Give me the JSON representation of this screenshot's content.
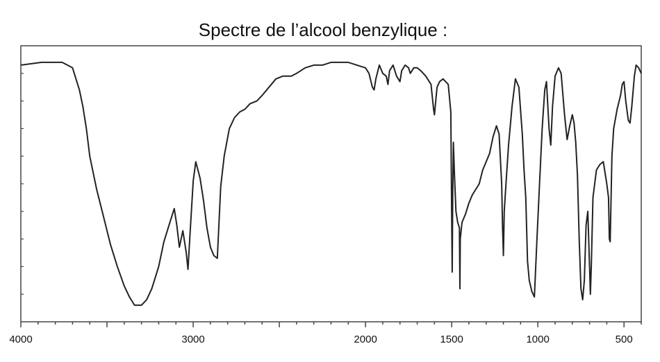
{
  "chart_data": {
    "type": "line",
    "title": "Spectre de l’alcool benzylique :",
    "xlabel": "",
    "ylabel": "",
    "xlim": [
      4000,
      400
    ],
    "ylim": [
      0,
      100
    ],
    "x_reversed": true,
    "grid": false,
    "legend": "none",
    "x_tick_labels": [
      {
        "value": 4000,
        "label": "4000"
      },
      {
        "value": 3000,
        "label": "3000"
      },
      {
        "value": 2000,
        "label": "2000"
      },
      {
        "value": 1500,
        "label": "1500"
      },
      {
        "value": 1000,
        "label": "1000"
      },
      {
        "value": 500,
        "label": "500"
      }
    ],
    "series": [
      {
        "color": "#222222",
        "points": [
          [
            4000,
            93
          ],
          [
            3880,
            94
          ],
          [
            3760,
            94
          ],
          [
            3700,
            92
          ],
          [
            3660,
            84
          ],
          [
            3640,
            78
          ],
          [
            3620,
            70
          ],
          [
            3600,
            60
          ],
          [
            3560,
            48
          ],
          [
            3520,
            38
          ],
          [
            3480,
            28
          ],
          [
            3440,
            20
          ],
          [
            3400,
            13
          ],
          [
            3370,
            9
          ],
          [
            3340,
            6
          ],
          [
            3300,
            6
          ],
          [
            3270,
            8
          ],
          [
            3240,
            12
          ],
          [
            3200,
            20
          ],
          [
            3170,
            29
          ],
          [
            3130,
            37
          ],
          [
            3110,
            41
          ],
          [
            3095,
            35
          ],
          [
            3080,
            27
          ],
          [
            3060,
            33
          ],
          [
            3040,
            25
          ],
          [
            3030,
            19
          ],
          [
            3020,
            30
          ],
          [
            3000,
            51
          ],
          [
            2985,
            58
          ],
          [
            2960,
            52
          ],
          [
            2940,
            44
          ],
          [
            2920,
            34
          ],
          [
            2900,
            27
          ],
          [
            2880,
            24
          ],
          [
            2860,
            23
          ],
          [
            2840,
            49
          ],
          [
            2820,
            60
          ],
          [
            2790,
            70
          ],
          [
            2760,
            74
          ],
          [
            2730,
            76
          ],
          [
            2700,
            77
          ],
          [
            2670,
            79
          ],
          [
            2630,
            80
          ],
          [
            2600,
            82
          ],
          [
            2560,
            85
          ],
          [
            2520,
            88
          ],
          [
            2480,
            89
          ],
          [
            2430,
            89
          ],
          [
            2400,
            90
          ],
          [
            2350,
            92
          ],
          [
            2300,
            93
          ],
          [
            2250,
            93
          ],
          [
            2200,
            94
          ],
          [
            2150,
            94
          ],
          [
            2100,
            94
          ],
          [
            2050,
            93
          ],
          [
            2000,
            92
          ],
          [
            1980,
            90
          ],
          [
            1960,
            85
          ],
          [
            1950,
            84
          ],
          [
            1940,
            88
          ],
          [
            1920,
            93
          ],
          [
            1900,
            90
          ],
          [
            1880,
            89
          ],
          [
            1870,
            86
          ],
          [
            1860,
            91
          ],
          [
            1840,
            93
          ],
          [
            1820,
            89
          ],
          [
            1800,
            87
          ],
          [
            1790,
            91
          ],
          [
            1770,
            93
          ],
          [
            1750,
            92
          ],
          [
            1740,
            90
          ],
          [
            1720,
            92
          ],
          [
            1700,
            92
          ],
          [
            1680,
            91
          ],
          [
            1650,
            89
          ],
          [
            1620,
            86
          ],
          [
            1605,
            77
          ],
          [
            1600,
            75
          ],
          [
            1585,
            85
          ],
          [
            1570,
            87
          ],
          [
            1550,
            88
          ],
          [
            1520,
            86
          ],
          [
            1505,
            76
          ],
          [
            1500,
            40
          ],
          [
            1497,
            18
          ],
          [
            1494,
            45
          ],
          [
            1490,
            65
          ],
          [
            1485,
            55
          ],
          [
            1475,
            40
          ],
          [
            1465,
            36
          ],
          [
            1455,
            34
          ],
          [
            1452,
            12
          ],
          [
            1450,
            30
          ],
          [
            1440,
            36
          ],
          [
            1420,
            39
          ],
          [
            1400,
            43
          ],
          [
            1380,
            46
          ],
          [
            1360,
            48
          ],
          [
            1340,
            50
          ],
          [
            1320,
            55
          ],
          [
            1300,
            58
          ],
          [
            1280,
            61
          ],
          [
            1260,
            67
          ],
          [
            1240,
            71
          ],
          [
            1225,
            68
          ],
          [
            1210,
            50
          ],
          [
            1205,
            35
          ],
          [
            1200,
            24
          ],
          [
            1195,
            40
          ],
          [
            1185,
            50
          ],
          [
            1170,
            64
          ],
          [
            1150,
            78
          ],
          [
            1130,
            88
          ],
          [
            1110,
            85
          ],
          [
            1090,
            68
          ],
          [
            1080,
            55
          ],
          [
            1070,
            45
          ],
          [
            1060,
            22
          ],
          [
            1050,
            15
          ],
          [
            1035,
            11
          ],
          [
            1020,
            9
          ],
          [
            1005,
            30
          ],
          [
            990,
            50
          ],
          [
            975,
            70
          ],
          [
            960,
            84
          ],
          [
            950,
            87
          ],
          [
            935,
            70
          ],
          [
            925,
            64
          ],
          [
            915,
            78
          ],
          [
            900,
            89
          ],
          [
            880,
            92
          ],
          [
            865,
            90
          ],
          [
            845,
            75
          ],
          [
            830,
            66
          ],
          [
            815,
            71
          ],
          [
            800,
            75
          ],
          [
            790,
            72
          ],
          [
            780,
            65
          ],
          [
            770,
            53
          ],
          [
            760,
            30
          ],
          [
            750,
            12
          ],
          [
            740,
            8
          ],
          [
            730,
            15
          ],
          [
            720,
            35
          ],
          [
            710,
            40
          ],
          [
            700,
            20
          ],
          [
            695,
            10
          ],
          [
            690,
            20
          ],
          [
            680,
            45
          ],
          [
            660,
            55
          ],
          [
            640,
            57
          ],
          [
            620,
            58
          ],
          [
            600,
            50
          ],
          [
            590,
            45
          ],
          [
            585,
            30
          ],
          [
            580,
            29
          ],
          [
            570,
            60
          ],
          [
            560,
            70
          ],
          [
            540,
            77
          ],
          [
            520,
            82
          ],
          [
            510,
            86
          ],
          [
            500,
            87
          ],
          [
            490,
            80
          ],
          [
            475,
            73
          ],
          [
            465,
            72
          ],
          [
            455,
            78
          ],
          [
            440,
            89
          ],
          [
            430,
            93
          ],
          [
            415,
            92
          ],
          [
            400,
            90
          ]
        ]
      }
    ]
  }
}
